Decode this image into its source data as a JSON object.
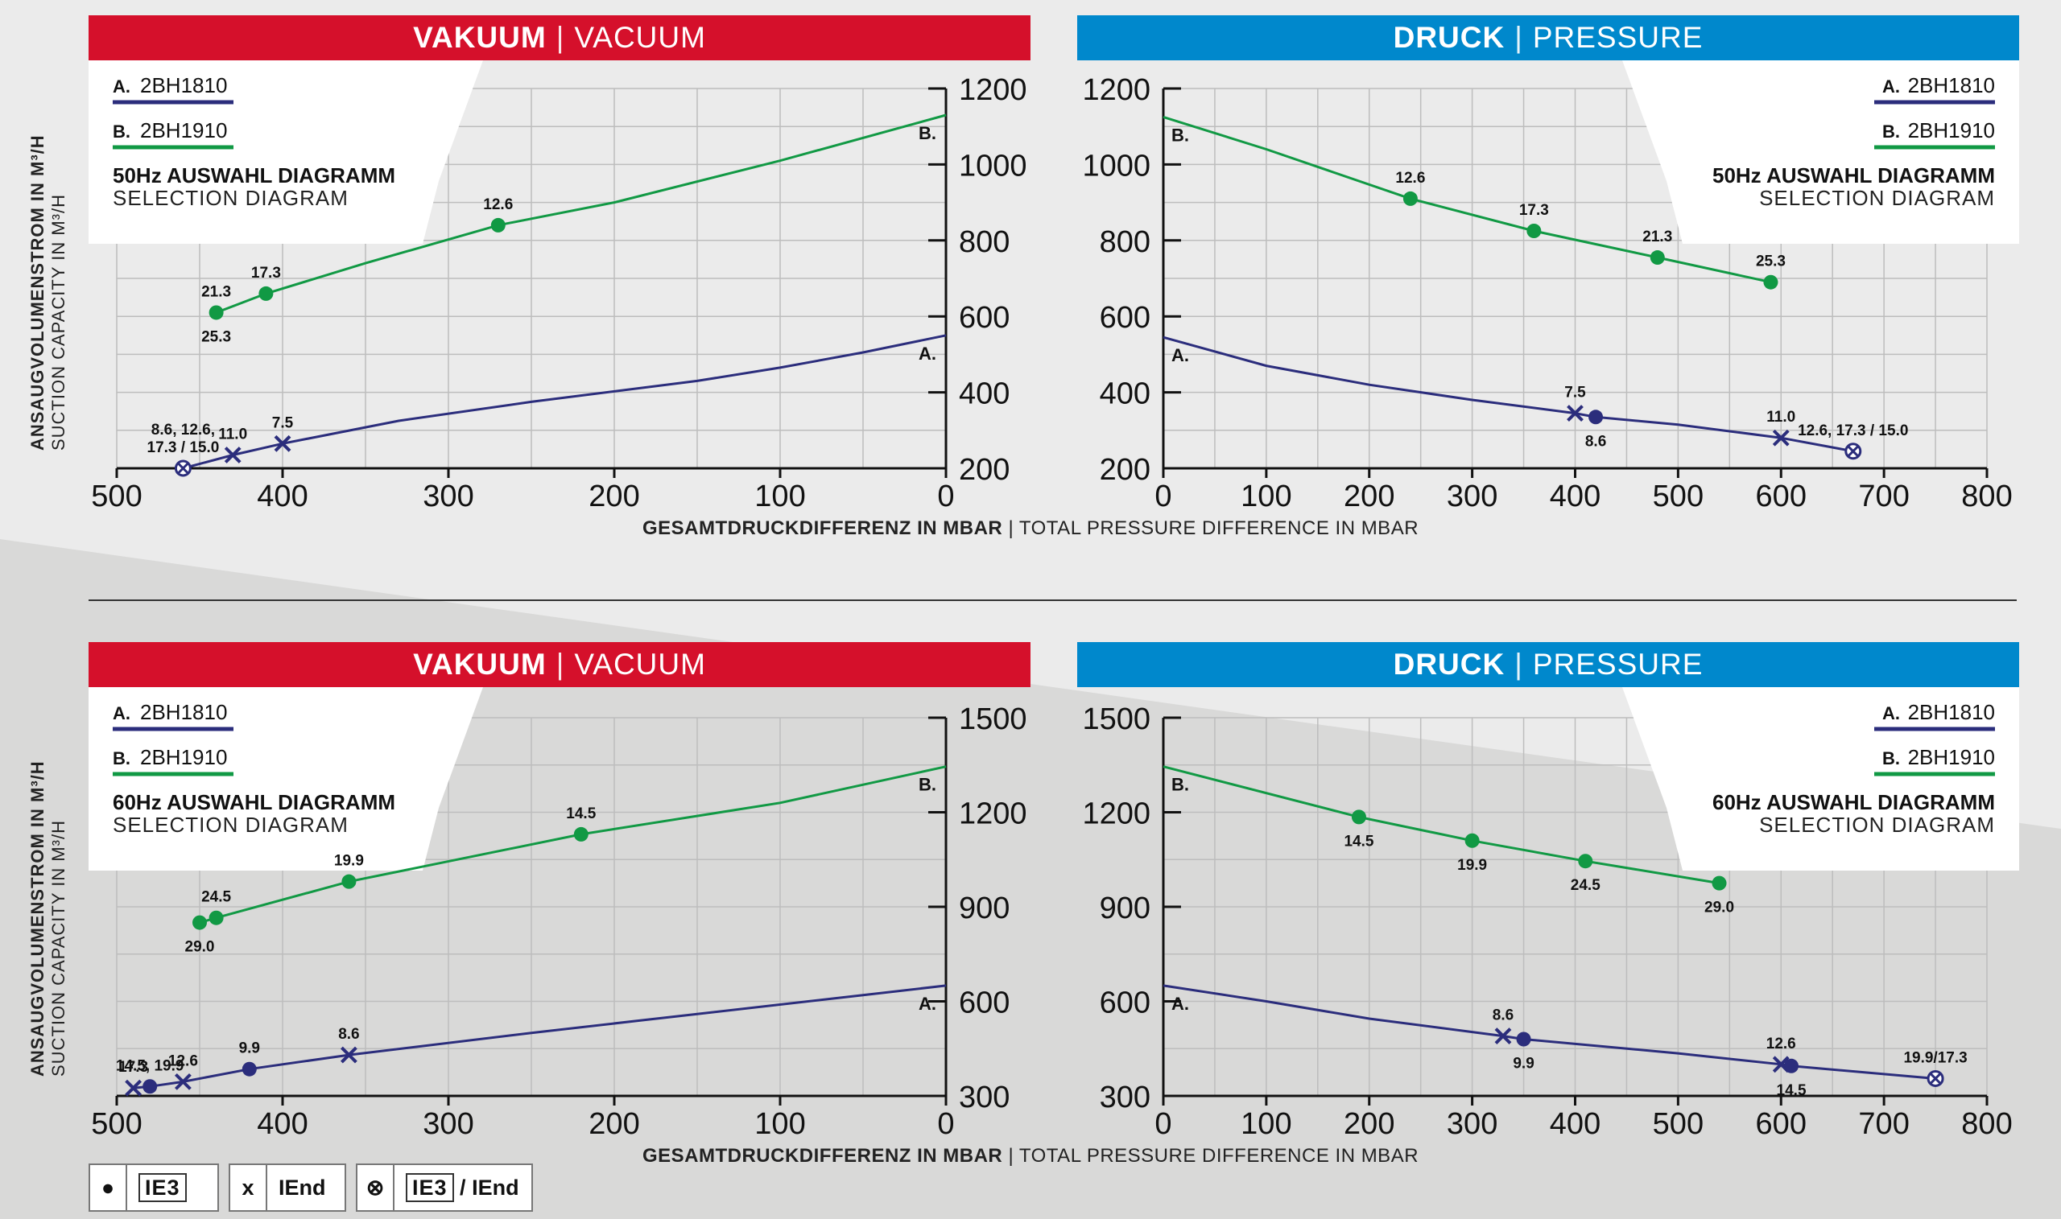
{
  "colors": {
    "vacuum_red": "#d5102b",
    "pressure_blue": "#0088cc",
    "series_a": "#2b2d7c",
    "series_b": "#119944"
  },
  "headers": {
    "vacuum_bold": "VAKUUM",
    "vacuum_light": "VACUUM",
    "pressure_bold": "DRUCK",
    "pressure_light": "PRESSURE",
    "separator": "|"
  },
  "legend_series": {
    "a_prefix": "A.",
    "a_name": "2BH1810",
    "b_prefix": "B.",
    "b_name": "2BH1910"
  },
  "diagram_labels": {
    "hz50_title": "50Hz AUSWAHL DIAGRAMM",
    "hz60_title": "60Hz AUSWAHL DIAGRAMM",
    "subtitle": "SELECTION DIAGRAM"
  },
  "y_axis": {
    "line1": "ANSAUGVOLUMENSTROM IN M³/H",
    "line2": "SUCTION CAPACITY IN M³/H"
  },
  "x_axis": {
    "bold": "GESAMTDRUCKDIFFERENZ IN MBAR",
    "sep": "|",
    "light": "TOTAL PRESSURE DIFFERENCE IN MBAR"
  },
  "bottom_legend": {
    "dot_symbol": "●",
    "ie3": "IE3",
    "x_symbol": "x",
    "iend": "IEnd",
    "otimes_symbol": "⊗",
    "slash": "/"
  },
  "chart_data": [
    {
      "id": "vac50",
      "type": "line",
      "mode": "vacuum",
      "title": "VAKUUM | VACUUM",
      "xlim": [
        500,
        0
      ],
      "ylim": [
        200,
        1200
      ],
      "xticks": [
        500,
        400,
        300,
        200,
        100,
        0
      ],
      "yticks": [
        200,
        400,
        600,
        800,
        1000,
        1200
      ],
      "series": [
        {
          "name": "A. 2BH1810",
          "end_label": "A.",
          "color": "#2b2d7c",
          "points": [
            [
              460,
              200
            ],
            [
              430,
              235
            ],
            [
              400,
              265
            ],
            [
              330,
              325
            ],
            [
              250,
              375
            ],
            [
              150,
              430
            ],
            [
              100,
              465
            ],
            [
              50,
              505
            ],
            [
              0,
              550
            ]
          ],
          "markers": [
            {
              "x": 460,
              "y": 200,
              "sym": "otimes",
              "label": "8.6, 12.6,\n17.3 / 15.0"
            },
            {
              "x": 430,
              "y": 235,
              "sym": "x",
              "label": "11.0"
            },
            {
              "x": 400,
              "y": 265,
              "sym": "x",
              "label": "7.5"
            }
          ]
        },
        {
          "name": "B. 2BH1910",
          "end_label": "B.",
          "color": "#119944",
          "points": [
            [
              440,
              610
            ],
            [
              410,
              660
            ],
            [
              350,
              740
            ],
            [
              270,
              840
            ],
            [
              200,
              900
            ],
            [
              100,
              1010
            ],
            [
              0,
              1130
            ]
          ],
          "markers": [
            {
              "x": 440,
              "y": 610,
              "sym": "dot",
              "label": "21.3",
              "label2": "25.3"
            },
            {
              "x": 410,
              "y": 660,
              "sym": "dot",
              "label": "17.3"
            },
            {
              "x": 270,
              "y": 840,
              "sym": "dot",
              "label": "12.6"
            }
          ]
        }
      ]
    },
    {
      "id": "pres50",
      "type": "line",
      "mode": "pressure",
      "title": "DRUCK | PRESSURE",
      "xlim": [
        0,
        800
      ],
      "ylim": [
        200,
        1200
      ],
      "xticks": [
        0,
        100,
        200,
        300,
        400,
        500,
        600,
        700,
        800
      ],
      "yticks": [
        200,
        400,
        600,
        800,
        1000,
        1200
      ],
      "series": [
        {
          "name": "A. 2BH1810",
          "end_label": "A.",
          "color": "#2b2d7c",
          "points": [
            [
              0,
              545
            ],
            [
              100,
              470
            ],
            [
              200,
              420
            ],
            [
              300,
              380
            ],
            [
              400,
              345
            ],
            [
              420,
              335
            ],
            [
              500,
              315
            ],
            [
              600,
              280
            ],
            [
              670,
              245
            ]
          ],
          "markers": [
            {
              "x": 400,
              "y": 345,
              "sym": "x",
              "label": "7.5"
            },
            {
              "x": 420,
              "y": 335,
              "sym": "dot",
              "label": "8.6",
              "below": true
            },
            {
              "x": 600,
              "y": 280,
              "sym": "x",
              "label": "11.0"
            },
            {
              "x": 670,
              "y": 245,
              "sym": "otimes",
              "label": "12.6, 17.3 / 15.0"
            }
          ]
        },
        {
          "name": "B. 2BH1910",
          "end_label": "B.",
          "color": "#119944",
          "points": [
            [
              0,
              1125
            ],
            [
              100,
              1040
            ],
            [
              240,
              910
            ],
            [
              360,
              825
            ],
            [
              480,
              755
            ],
            [
              590,
              690
            ]
          ],
          "markers": [
            {
              "x": 240,
              "y": 910,
              "sym": "dot",
              "label": "12.6"
            },
            {
              "x": 360,
              "y": 825,
              "sym": "dot",
              "label": "17.3"
            },
            {
              "x": 480,
              "y": 755,
              "sym": "dot",
              "label": "21.3"
            },
            {
              "x": 590,
              "y": 690,
              "sym": "dot",
              "label": "25.3"
            }
          ]
        }
      ]
    },
    {
      "id": "vac60",
      "type": "line",
      "mode": "vacuum",
      "title": "VAKUUM | VACUUM",
      "xlim": [
        500,
        0
      ],
      "ylim": [
        300,
        1500
      ],
      "xticks": [
        500,
        400,
        300,
        200,
        100,
        0
      ],
      "yticks": [
        300,
        600,
        900,
        1200,
        1500
      ],
      "series": [
        {
          "name": "A. 2BH1810",
          "end_label": "A.",
          "color": "#2b2d7c",
          "points": [
            [
              490,
              325
            ],
            [
              480,
              330
            ],
            [
              460,
              345
            ],
            [
              420,
              385
            ],
            [
              360,
              430
            ],
            [
              250,
              500
            ],
            [
              150,
              560
            ],
            [
              50,
              620
            ],
            [
              0,
              650
            ]
          ],
          "markers": [
            {
              "x": 490,
              "y": 325,
              "sym": "x",
              "label": "17.3"
            },
            {
              "x": 480,
              "y": 330,
              "sym": "dot",
              "label": "14.5, 19.9"
            },
            {
              "x": 460,
              "y": 345,
              "sym": "x",
              "label": "12.6"
            },
            {
              "x": 420,
              "y": 385,
              "sym": "dot",
              "label": "9.9"
            },
            {
              "x": 360,
              "y": 430,
              "sym": "x",
              "label": "8.6"
            }
          ]
        },
        {
          "name": "B. 2BH1910",
          "end_label": "B.",
          "color": "#119944",
          "points": [
            [
              450,
              850
            ],
            [
              440,
              865
            ],
            [
              360,
              980
            ],
            [
              220,
              1130
            ],
            [
              100,
              1230
            ],
            [
              0,
              1345
            ]
          ],
          "markers": [
            {
              "x": 450,
              "y": 850,
              "sym": "dot",
              "label": "29.0",
              "below": true
            },
            {
              "x": 440,
              "y": 865,
              "sym": "dot",
              "label": "24.5"
            },
            {
              "x": 360,
              "y": 980,
              "sym": "dot",
              "label": "19.9"
            },
            {
              "x": 220,
              "y": 1130,
              "sym": "dot",
              "label": "14.5"
            }
          ]
        }
      ]
    },
    {
      "id": "pres60",
      "type": "line",
      "mode": "pressure",
      "title": "DRUCK | PRESSURE",
      "xlim": [
        0,
        800
      ],
      "ylim": [
        300,
        1500
      ],
      "xticks": [
        0,
        100,
        200,
        300,
        400,
        500,
        600,
        700,
        800
      ],
      "yticks": [
        300,
        600,
        900,
        1200,
        1500
      ],
      "series": [
        {
          "name": "A. 2BH1810",
          "end_label": "A.",
          "color": "#2b2d7c",
          "points": [
            [
              0,
              650
            ],
            [
              100,
              600
            ],
            [
              200,
              545
            ],
            [
              330,
              490
            ],
            [
              350,
              480
            ],
            [
              500,
              435
            ],
            [
              600,
              400
            ],
            [
              610,
              395
            ],
            [
              750,
              355
            ]
          ],
          "markers": [
            {
              "x": 330,
              "y": 490,
              "sym": "x",
              "label": "8.6"
            },
            {
              "x": 350,
              "y": 480,
              "sym": "dot",
              "label": "9.9",
              "below": true
            },
            {
              "x": 600,
              "y": 400,
              "sym": "x",
              "label": "12.6"
            },
            {
              "x": 610,
              "y": 395,
              "sym": "dot",
              "label": "14.5",
              "below": true
            },
            {
              "x": 750,
              "y": 355,
              "sym": "otimes",
              "label": "19.9/17.3"
            }
          ]
        },
        {
          "name": "B. 2BH1910",
          "end_label": "B.",
          "color": "#119944",
          "points": [
            [
              0,
              1345
            ],
            [
              190,
              1185
            ],
            [
              300,
              1110
            ],
            [
              410,
              1045
            ],
            [
              540,
              975
            ]
          ],
          "markers": [
            {
              "x": 190,
              "y": 1185,
              "sym": "dot",
              "label": "14.5",
              "below": true
            },
            {
              "x": 300,
              "y": 1110,
              "sym": "dot",
              "label": "19.9",
              "below": true
            },
            {
              "x": 410,
              "y": 1045,
              "sym": "dot",
              "label": "24.5",
              "below": true
            },
            {
              "x": 540,
              "y": 975,
              "sym": "dot",
              "label": "29.0",
              "below": true
            }
          ]
        }
      ]
    }
  ]
}
